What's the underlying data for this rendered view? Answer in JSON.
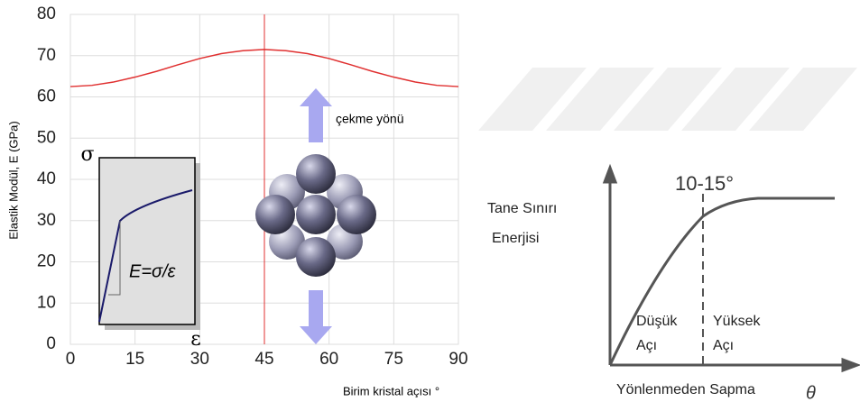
{
  "chart_data": [
    {
      "type": "line",
      "y_label": "Elastik Modül, E (GPa)",
      "x_label": "Birim kristal açısı °",
      "annotations": {
        "direction": "çekme yönü",
        "sigma": "σ",
        "epsilon": "ε",
        "formula": "E=σ/ε"
      },
      "x": [
        0,
        5,
        10,
        15,
        20,
        25,
        30,
        35,
        40,
        45,
        50,
        55,
        60,
        65,
        70,
        75,
        80,
        85,
        90
      ],
      "series": [
        {
          "color": "#e03030",
          "values": [
            62.5,
            62.8,
            63.6,
            64.8,
            66.2,
            67.8,
            69.3,
            70.5,
            71.2,
            71.5,
            71.2,
            70.5,
            69.3,
            67.8,
            66.2,
            64.8,
            63.6,
            62.8,
            62.5
          ]
        }
      ],
      "vline": 45,
      "xlim": [
        0,
        90
      ],
      "xticks": [
        0,
        15,
        30,
        45,
        60,
        75,
        90
      ],
      "ylim": [
        0,
        80
      ],
      "yticks": [
        0,
        10,
        20,
        30,
        40,
        50,
        60,
        70,
        80
      ],
      "grid": true
    },
    {
      "type": "line",
      "y_label": [
        "Tane Sınırı",
        "Enerjisi"
      ],
      "x_label": "Yönlenmeden Sapma",
      "x_symbol": "θ",
      "threshold_label": "10-15°",
      "regions": [
        [
          "Düşük",
          "Açı"
        ],
        [
          "Yüksek",
          "Açı"
        ]
      ]
    }
  ]
}
